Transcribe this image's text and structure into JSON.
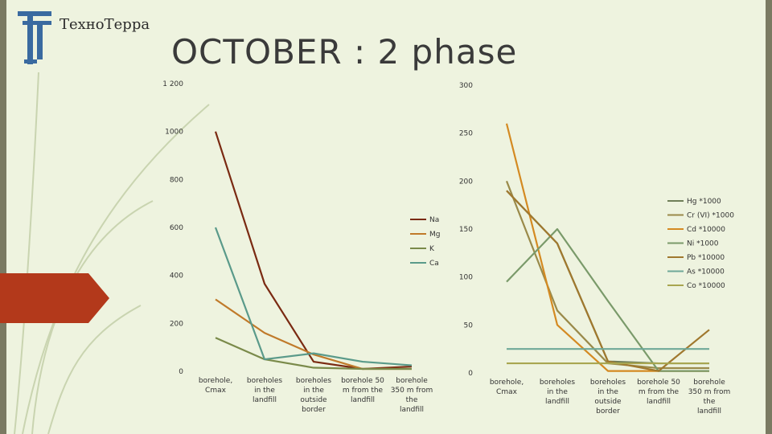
{
  "slide": {
    "title": "OCTOBER : 2 phase",
    "brand": "ТехноТерра"
  },
  "chart_data": [
    {
      "type": "line",
      "categories": [
        "borehole, Cmax",
        "boreholes in the landfill",
        "boreholes in the outside border",
        "borehole 50 m from the landfill",
        "borehole 350 m from the landfill"
      ],
      "ylim": [
        0,
        1200
      ],
      "yticks": [
        0,
        200,
        400,
        600,
        800,
        1000,
        1200
      ],
      "ytick_labels": [
        "0",
        "200",
        "400",
        "600",
        "800",
        "1000",
        "1 200"
      ],
      "grid": false,
      "legend": "right",
      "series": [
        {
          "name": "Na",
          "color": "#7a2a12",
          "values": [
            1000,
            365,
            40,
            10,
            20
          ]
        },
        {
          "name": "Mg",
          "color": "#c07a2a",
          "values": [
            300,
            160,
            70,
            10,
            10
          ]
        },
        {
          "name": "K",
          "color": "#7a8a4a",
          "values": [
            140,
            50,
            15,
            10,
            10
          ]
        },
        {
          "name": "Ca",
          "color": "#5a9a8a",
          "values": [
            600,
            50,
            75,
            40,
            25
          ]
        }
      ]
    },
    {
      "type": "line",
      "categories": [
        "borehole, Cmax",
        "boreholes in the landfill",
        "boreholes in the outside border",
        "borehole 50 m from the landfill",
        "borehole 350 m from the landfill"
      ],
      "ylim": [
        0,
        300
      ],
      "yticks": [
        0,
        50,
        100,
        150,
        200,
        250,
        300
      ],
      "ytick_labels": [
        "0",
        "50",
        "100",
        "150",
        "200",
        "250",
        "300"
      ],
      "grid": false,
      "legend": "right",
      "series": [
        {
          "name": "Hg *1000",
          "color": "#6f7f58",
          "values": [
            190,
            135,
            12,
            10,
            10
          ]
        },
        {
          "name": "Cr (VI) *1000",
          "color": "#9a8a4a",
          "values": [
            200,
            65,
            10,
            5,
            5
          ]
        },
        {
          "name": "Cd *10000",
          "color": "#d48a22",
          "values": [
            260,
            50,
            2,
            2,
            2
          ]
        },
        {
          "name": "Ni *1000",
          "color": "#7a9a6a",
          "values": [
            95,
            150,
            75,
            2,
            2
          ]
        },
        {
          "name": "Pb *10000",
          "color": "#a0782e",
          "values": [
            190,
            135,
            12,
            2,
            45
          ]
        },
        {
          "name": "As *10000",
          "color": "#6fa898",
          "values": [
            25,
            25,
            25,
            25,
            25
          ]
        },
        {
          "name": "Co *10000",
          "color": "#a8a650",
          "values": [
            10,
            10,
            10,
            10,
            10
          ]
        }
      ]
    }
  ]
}
